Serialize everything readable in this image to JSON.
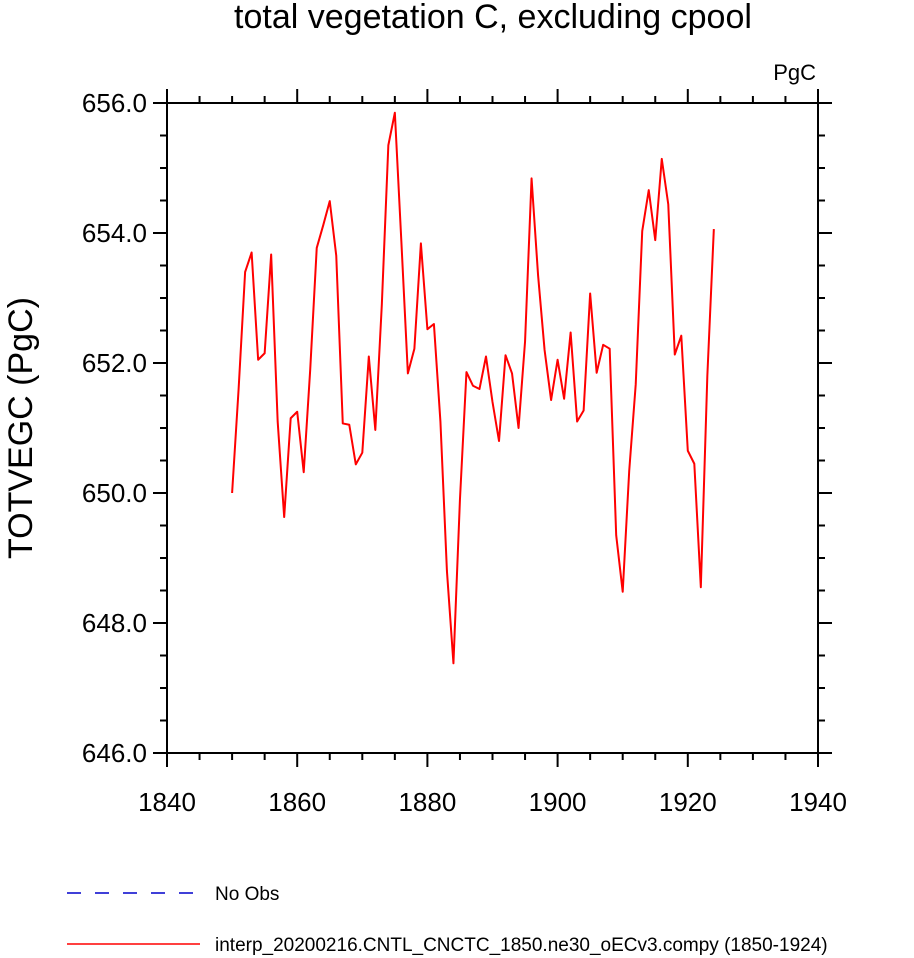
{
  "chart_data": {
    "type": "line",
    "title": "total vegetation C, excluding cpool",
    "units": "PgC",
    "ylabel": "TOTVEGC  (PgC)",
    "xlabel": "",
    "xlim": [
      1840,
      1940
    ],
    "ylim": [
      646,
      656
    ],
    "x_ticks": [
      1840,
      1860,
      1880,
      1900,
      1920,
      1940
    ],
    "x_tick_labels": [
      "1840",
      "1860",
      "1880",
      "1900",
      "1920",
      "1940"
    ],
    "y_ticks": [
      646,
      648,
      650,
      652,
      654,
      656
    ],
    "y_tick_labels": [
      "646.0",
      "648.0",
      "650.0",
      "652.0",
      "654.0",
      "656.0"
    ],
    "grid": false,
    "legend": [
      {
        "label": "No Obs",
        "color": "#0000cc",
        "style": "dashed"
      },
      {
        "label": "interp_20200216.CNTL_CNCTC_1850.ne30_oECv3.compy (1850-1924)",
        "color": "#ff0000",
        "style": "solid"
      }
    ],
    "series": [
      {
        "color": "#ff0000",
        "x": [
          1850,
          1851,
          1852,
          1853,
          1854,
          1855,
          1856,
          1857,
          1858,
          1859,
          1860,
          1861,
          1862,
          1863,
          1864,
          1865,
          1866,
          1867,
          1868,
          1869,
          1870,
          1871,
          1872,
          1873,
          1874,
          1875,
          1876,
          1877,
          1878,
          1879,
          1880,
          1881,
          1882,
          1883,
          1884,
          1885,
          1886,
          1887,
          1888,
          1889,
          1890,
          1891,
          1892,
          1893,
          1894,
          1895,
          1896,
          1897,
          1898,
          1899,
          1900,
          1901,
          1902,
          1903,
          1904,
          1905,
          1906,
          1907,
          1908,
          1909,
          1910,
          1911,
          1912,
          1913,
          1914,
          1915,
          1916,
          1917,
          1918,
          1919,
          1920,
          1921,
          1922,
          1923,
          1924
        ],
        "values": [
          650.0,
          651.6,
          653.4,
          653.7,
          652.05,
          652.15,
          653.67,
          651.1,
          649.63,
          651.15,
          651.25,
          650.32,
          651.9,
          653.77,
          654.12,
          654.49,
          653.65,
          651.07,
          651.05,
          650.44,
          650.62,
          652.1,
          650.97,
          652.9,
          655.35,
          655.85,
          653.87,
          651.84,
          652.22,
          653.84,
          652.52,
          652.6,
          651.1,
          648.8,
          647.38,
          649.9,
          651.86,
          651.65,
          651.6,
          652.1,
          651.4,
          650.8,
          652.12,
          651.84,
          651.0,
          652.33,
          654.84,
          653.35,
          652.2,
          651.43,
          652.05,
          651.45,
          652.47,
          651.1,
          651.27,
          653.07,
          651.85,
          652.28,
          652.22,
          649.35,
          648.48,
          650.34,
          651.67,
          654.03,
          654.66,
          653.89,
          655.14,
          654.44,
          652.13,
          652.42,
          650.65,
          650.45,
          648.55,
          651.8,
          654.06
        ]
      }
    ]
  }
}
